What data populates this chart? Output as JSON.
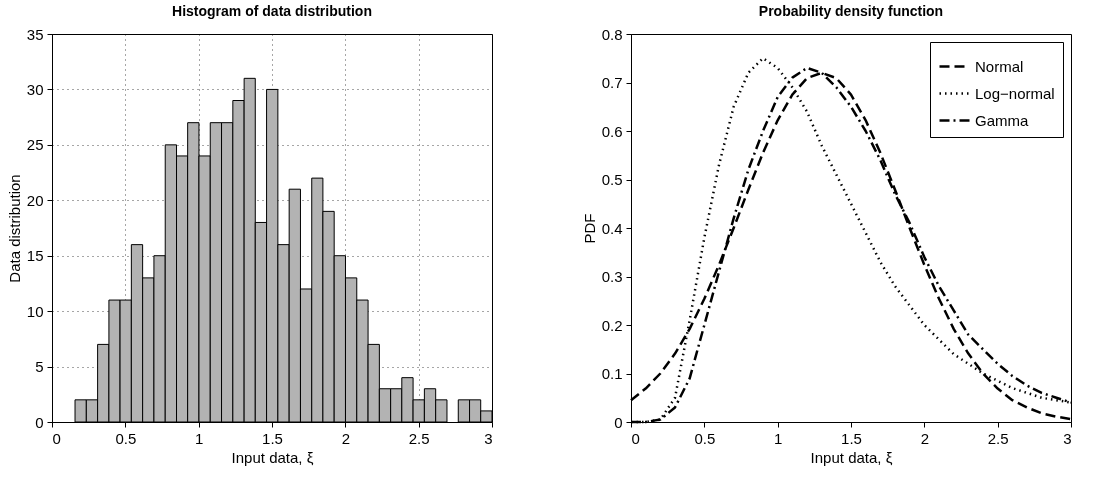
{
  "chart_data": [
    {
      "type": "histogram",
      "title": "Histogram of data distribution",
      "xlabel": "Input data, ξ",
      "ylabel": "Data distribution",
      "bins": [
        0.157,
        0.234,
        0.311,
        0.388,
        0.464,
        0.541,
        0.618,
        0.695,
        0.772,
        0.849,
        0.925,
        1.002,
        1.079,
        1.156,
        1.233,
        1.31,
        1.386,
        1.463,
        1.54,
        1.617,
        1.694,
        1.771,
        1.847,
        1.924,
        2.001,
        2.078,
        2.155,
        2.232,
        2.309,
        2.385,
        2.462,
        2.539,
        2.616,
        2.693,
        2.77,
        2.847,
        2.923,
        3.0
      ],
      "values": [
        2,
        2,
        7,
        11,
        11,
        16,
        13,
        15,
        25,
        24,
        27,
        24,
        27,
        27,
        29,
        31,
        18,
        30,
        16,
        21,
        12,
        22,
        19,
        15,
        13,
        11,
        7,
        3,
        3,
        4,
        2,
        3,
        2,
        0,
        2,
        2,
        1
      ],
      "color": "#b3b3b3",
      "xlim": [
        0,
        3
      ],
      "xticks": [
        0,
        0.5,
        1,
        1.5,
        2,
        2.5,
        3
      ],
      "ylim": [
        0,
        35
      ],
      "yticks": [
        0,
        5,
        10,
        15,
        20,
        25,
        30,
        35
      ],
      "grid": true
    },
    {
      "type": "line",
      "title": "Probability density function",
      "xlabel": "Input data, ξ",
      "ylabel": "PDF",
      "x": [
        0,
        0.1,
        0.2,
        0.3,
        0.4,
        0.5,
        0.6,
        0.7,
        0.8,
        0.9,
        1.0,
        1.1,
        1.2,
        1.3,
        1.4,
        1.5,
        1.6,
        1.7,
        1.8,
        1.9,
        2.0,
        2.1,
        2.2,
        2.3,
        2.4,
        2.5,
        2.6,
        2.7,
        2.8,
        2.9,
        3.0
      ],
      "series": [
        {
          "name": "Normal",
          "color": "#000000",
          "line_style": "dashed",
          "values": [
            0.045,
            0.069,
            0.1,
            0.141,
            0.192,
            0.254,
            0.324,
            0.4,
            0.479,
            0.555,
            0.622,
            0.675,
            0.709,
            0.72,
            0.709,
            0.675,
            0.622,
            0.555,
            0.479,
            0.4,
            0.324,
            0.254,
            0.192,
            0.141,
            0.1,
            0.069,
            0.045,
            0.03,
            0.018,
            0.011,
            0.006
          ]
        },
        {
          "name": "Log−normal",
          "color": "#000000",
          "line_style": "dotted",
          "values": [
            0,
            0,
            0.005,
            0.05,
            0.21,
            0.38,
            0.53,
            0.65,
            0.72,
            0.75,
            0.73,
            0.69,
            0.64,
            0.57,
            0.51,
            0.45,
            0.39,
            0.33,
            0.28,
            0.24,
            0.2,
            0.17,
            0.14,
            0.12,
            0.1,
            0.085,
            0.07,
            0.06,
            0.05,
            0.045,
            0.04
          ]
        },
        {
          "name": "Gamma",
          "color": "#000000",
          "line_style": "dashdot",
          "values": [
            0,
            0,
            0.005,
            0.03,
            0.09,
            0.2,
            0.31,
            0.42,
            0.52,
            0.6,
            0.67,
            0.71,
            0.73,
            0.72,
            0.69,
            0.65,
            0.6,
            0.54,
            0.47,
            0.41,
            0.34,
            0.28,
            0.23,
            0.18,
            0.15,
            0.12,
            0.095,
            0.075,
            0.06,
            0.05,
            0.04
          ]
        }
      ],
      "xlim": [
        0,
        3
      ],
      "xticks": [
        0,
        0.5,
        1,
        1.5,
        2,
        2.5,
        3
      ],
      "ylim": [
        0,
        0.8
      ],
      "yticks": [
        0,
        0.1,
        0.2,
        0.3,
        0.4,
        0.5,
        0.6,
        0.7,
        0.8
      ],
      "grid": false,
      "legend": "top right"
    }
  ]
}
